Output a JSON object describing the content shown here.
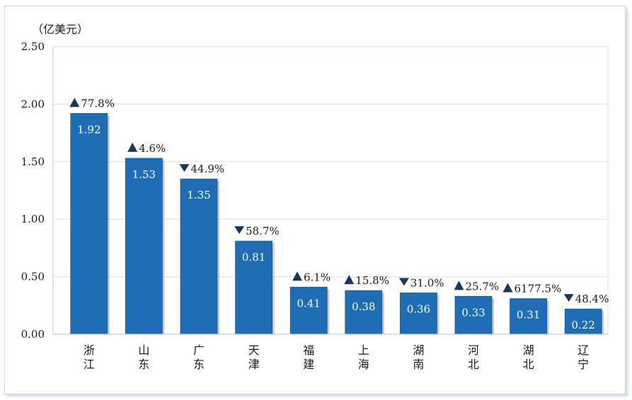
{
  "chart_data": {
    "type": "bar",
    "unit_label": "（亿美元）",
    "categories": [
      "浙江",
      "山东",
      "广东",
      "天津",
      "福建",
      "上海",
      "湖南",
      "河北",
      "湖北",
      "辽宁"
    ],
    "values": [
      1.92,
      1.53,
      1.35,
      0.81,
      0.41,
      0.38,
      0.36,
      0.33,
      0.31,
      0.22
    ],
    "value_labels": [
      "1.92",
      "1.53",
      "1.35",
      "0.81",
      "0.41",
      "0.38",
      "0.36",
      "0.33",
      "0.31",
      "0.22"
    ],
    "changes": [
      {
        "direction": "up",
        "text": "77.8%"
      },
      {
        "direction": "up",
        "text": "4.6%"
      },
      {
        "direction": "down",
        "text": "44.9%"
      },
      {
        "direction": "down",
        "text": "58.7%"
      },
      {
        "direction": "up",
        "text": "6.1%"
      },
      {
        "direction": "up",
        "text": "15.8%"
      },
      {
        "direction": "down",
        "text": "31.0%"
      },
      {
        "direction": "up",
        "text": "25.7%"
      },
      {
        "direction": "up",
        "text": "6177.5%"
      },
      {
        "direction": "down",
        "text": "48.4%"
      }
    ],
    "ylim": [
      0,
      2.5
    ],
    "yticks": [
      0,
      0.5,
      1.0,
      1.5,
      2.0,
      2.5
    ],
    "ytick_labels": [
      "0.00",
      "0.50",
      "1.00",
      "1.50",
      "2.00",
      "2.50"
    ],
    "grid": true,
    "colors": {
      "bar": "#1f6db4",
      "bar_edge": "#185a96",
      "grid": "#dbe4ee",
      "markers": "#17375e"
    }
  }
}
